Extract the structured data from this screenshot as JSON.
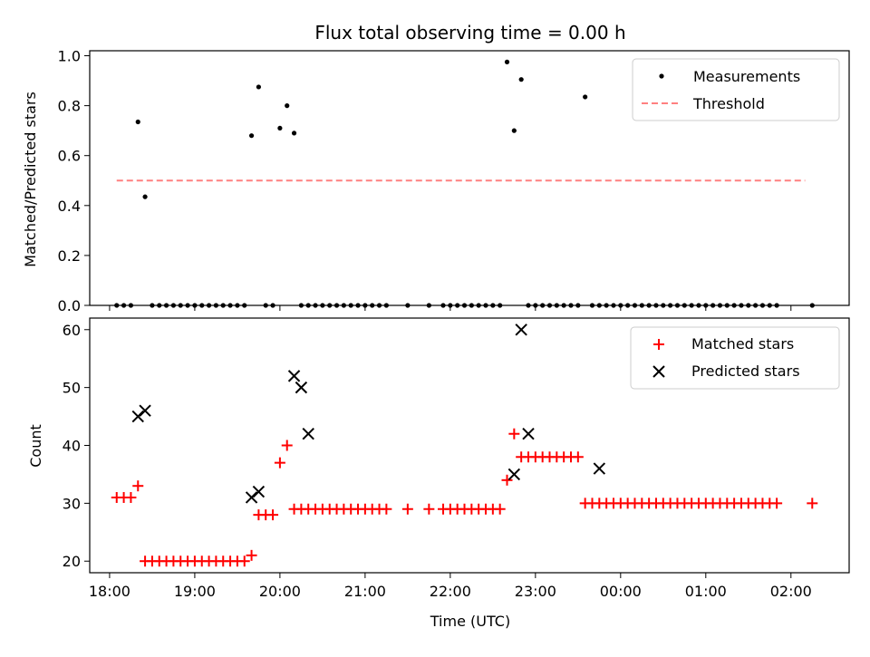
{
  "chart_data": [
    {
      "type": "scatter",
      "title": "Flux total observing time = 0.00 h",
      "xlabel": "",
      "ylabel": "Matched/Predicted stars",
      "xlim": [
        "17:46",
        "02:41"
      ],
      "ylim": [
        0,
        1.02
      ],
      "yticks": [
        "0.0",
        "0.2",
        "0.4",
        "0.6",
        "0.8",
        "1.0"
      ],
      "legend_position": "top-right",
      "series": [
        {
          "name": "Measurements",
          "marker": "dot",
          "color": "#000000",
          "x": [
            "18:05",
            "18:10",
            "18:15",
            "18:20",
            "18:25",
            "18:30",
            "18:35",
            "18:40",
            "18:45",
            "18:50",
            "18:55",
            "19:00",
            "19:05",
            "19:10",
            "19:15",
            "19:20",
            "19:25",
            "19:30",
            "19:35",
            "19:40",
            "19:45",
            "19:50",
            "19:55",
            "20:00",
            "20:05",
            "20:10",
            "20:15",
            "20:20",
            "20:25",
            "20:30",
            "20:35",
            "20:40",
            "20:45",
            "20:50",
            "20:55",
            "21:00",
            "21:05",
            "21:10",
            "21:15",
            "21:30",
            "21:45",
            "21:55",
            "22:00",
            "22:05",
            "22:10",
            "22:15",
            "22:20",
            "22:25",
            "22:30",
            "22:35",
            "22:40",
            "22:45",
            "22:50",
            "22:55",
            "23:00",
            "23:05",
            "23:10",
            "23:15",
            "23:20",
            "23:25",
            "23:30",
            "23:35",
            "23:40",
            "23:45",
            "23:50",
            "23:55",
            "00:00",
            "00:05",
            "00:10",
            "00:15",
            "00:20",
            "00:25",
            "00:30",
            "00:35",
            "00:40",
            "00:45",
            "00:50",
            "00:55",
            "01:00",
            "01:05",
            "01:10",
            "01:15",
            "01:20",
            "01:25",
            "01:30",
            "01:35",
            "01:40",
            "01:45",
            "01:50",
            "02:15"
          ],
          "y": [
            0,
            0,
            0,
            0.735,
            0.435,
            0,
            0,
            0,
            0,
            0,
            0,
            0,
            0,
            0,
            0,
            0,
            0,
            0,
            0,
            0.68,
            0.875,
            0,
            0,
            0.71,
            0.8,
            0.69,
            0,
            0,
            0,
            0,
            0,
            0,
            0,
            0,
            0,
            0,
            0,
            0,
            0,
            0,
            0,
            0,
            0,
            0,
            0,
            0,
            0,
            0,
            0,
            0,
            0.975,
            0.7,
            0.905,
            0,
            0,
            0,
            0,
            0,
            0,
            0,
            0,
            0.835,
            0,
            0,
            0,
            0,
            0,
            0,
            0,
            0,
            0,
            0,
            0,
            0,
            0,
            0,
            0,
            0,
            0,
            0,
            0,
            0,
            0,
            0,
            0,
            0,
            0,
            0,
            0,
            0
          ]
        },
        {
          "name": "Threshold",
          "marker": "dashed-line",
          "color": "#ff8080",
          "x": [
            "18:05",
            "02:10"
          ],
          "y": [
            0.5,
            0.5
          ]
        }
      ]
    },
    {
      "type": "scatter",
      "title": "",
      "xlabel": "Time (UTC)",
      "ylabel": "Count",
      "xlim": [
        "17:46",
        "02:41"
      ],
      "ylim": [
        18,
        62
      ],
      "yticks": [
        "20",
        "30",
        "40",
        "50",
        "60"
      ],
      "xticks": [
        "18:00",
        "19:00",
        "20:00",
        "21:00",
        "22:00",
        "23:00",
        "00:00",
        "01:00",
        "02:00"
      ],
      "legend_position": "top-right",
      "series": [
        {
          "name": "Matched stars",
          "marker": "plus",
          "color": "#ff0000",
          "x": [
            "18:05",
            "18:10",
            "18:15",
            "18:20",
            "18:25",
            "18:30",
            "18:35",
            "18:40",
            "18:45",
            "18:50",
            "18:55",
            "19:00",
            "19:05",
            "19:10",
            "19:15",
            "19:20",
            "19:25",
            "19:30",
            "19:35",
            "19:40",
            "19:45",
            "19:50",
            "19:55",
            "20:00",
            "20:05",
            "20:10",
            "20:15",
            "20:20",
            "20:25",
            "20:30",
            "20:35",
            "20:40",
            "20:45",
            "20:50",
            "20:55",
            "21:00",
            "21:05",
            "21:10",
            "21:15",
            "21:30",
            "21:45",
            "21:55",
            "22:00",
            "22:05",
            "22:10",
            "22:15",
            "22:20",
            "22:25",
            "22:30",
            "22:35",
            "22:40",
            "22:45",
            "22:50",
            "22:55",
            "23:00",
            "23:05",
            "23:10",
            "23:15",
            "23:20",
            "23:25",
            "23:30",
            "23:35",
            "23:40",
            "23:45",
            "23:50",
            "23:55",
            "00:00",
            "00:05",
            "00:10",
            "00:15",
            "00:20",
            "00:25",
            "00:30",
            "00:35",
            "00:40",
            "00:45",
            "00:50",
            "00:55",
            "01:00",
            "01:05",
            "01:10",
            "01:15",
            "01:20",
            "01:25",
            "01:30",
            "01:35",
            "01:40",
            "01:45",
            "01:50",
            "02:15"
          ],
          "y": [
            31,
            31,
            31,
            33,
            20,
            20,
            20,
            20,
            20,
            20,
            20,
            20,
            20,
            20,
            20,
            20,
            20,
            20,
            20,
            21,
            28,
            28,
            28,
            37,
            40,
            29,
            29,
            29,
            29,
            29,
            29,
            29,
            29,
            29,
            29,
            29,
            29,
            29,
            29,
            29,
            29,
            29,
            29,
            29,
            29,
            29,
            29,
            29,
            29,
            29,
            34,
            42,
            38,
            38,
            38,
            38,
            38,
            38,
            38,
            38,
            38,
            30,
            30,
            30,
            30,
            30,
            30,
            30,
            30,
            30,
            30,
            30,
            30,
            30,
            30,
            30,
            30,
            30,
            30,
            30,
            30,
            30,
            30,
            30,
            30,
            30,
            30,
            30,
            30,
            30
          ]
        },
        {
          "name": "Predicted stars",
          "marker": "x",
          "color": "#000000",
          "x": [
            "18:20",
            "18:25",
            "19:40",
            "19:45",
            "20:10",
            "20:15",
            "20:20",
            "22:45",
            "22:50",
            "22:55",
            "23:45"
          ],
          "y": [
            45,
            46,
            31,
            32,
            52,
            50,
            42,
            35,
            60,
            42,
            36
          ]
        }
      ]
    }
  ]
}
